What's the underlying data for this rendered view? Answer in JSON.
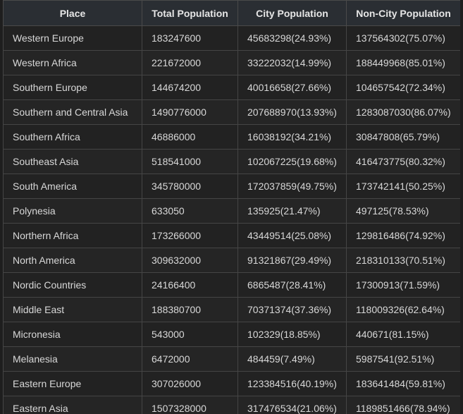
{
  "table": {
    "headers": [
      "Place",
      "Total Population",
      "City Population",
      "Non-City Population"
    ],
    "rows": [
      {
        "place": "Western Europe",
        "total": "183247600",
        "city": "45683298(24.93%)",
        "noncity": "137564302(75.07%)"
      },
      {
        "place": "Western Africa",
        "total": "221672000",
        "city": "33222032(14.99%)",
        "noncity": "188449968(85.01%)"
      },
      {
        "place": "Southern Europe",
        "total": "144674200",
        "city": "40016658(27.66%)",
        "noncity": "104657542(72.34%)"
      },
      {
        "place": "Southern and Central Asia",
        "total": "1490776000",
        "city": "207688970(13.93%)",
        "noncity": "1283087030(86.07%)"
      },
      {
        "place": "Southern Africa",
        "total": "46886000",
        "city": "16038192(34.21%)",
        "noncity": "30847808(65.79%)"
      },
      {
        "place": "Southeast Asia",
        "total": "518541000",
        "city": "102067225(19.68%)",
        "noncity": "416473775(80.32%)"
      },
      {
        "place": "South America",
        "total": "345780000",
        "city": "172037859(49.75%)",
        "noncity": "173742141(50.25%)"
      },
      {
        "place": "Polynesia",
        "total": "633050",
        "city": "135925(21.47%)",
        "noncity": "497125(78.53%)"
      },
      {
        "place": "Northern Africa",
        "total": "173266000",
        "city": "43449514(25.08%)",
        "noncity": "129816486(74.92%)"
      },
      {
        "place": "North America",
        "total": "309632000",
        "city": "91321867(29.49%)",
        "noncity": "218310133(70.51%)"
      },
      {
        "place": "Nordic Countries",
        "total": "24166400",
        "city": "6865487(28.41%)",
        "noncity": "17300913(71.59%)"
      },
      {
        "place": "Middle East",
        "total": "188380700",
        "city": "70371374(37.36%)",
        "noncity": "118009326(62.64%)"
      },
      {
        "place": "Micronesia",
        "total": "543000",
        "city": "102329(18.85%)",
        "noncity": "440671(81.15%)"
      },
      {
        "place": "Melanesia",
        "total": "6472000",
        "city": "484459(7.49%)",
        "noncity": "5987541(92.51%)"
      },
      {
        "place": "Eastern Europe",
        "total": "307026000",
        "city": "123384516(40.19%)",
        "noncity": "183641484(59.81%)"
      },
      {
        "place": "Eastern Asia",
        "total": "1507328000",
        "city": "317476534(21.06%)",
        "noncity": "1189851466(78.94%)"
      }
    ]
  }
}
